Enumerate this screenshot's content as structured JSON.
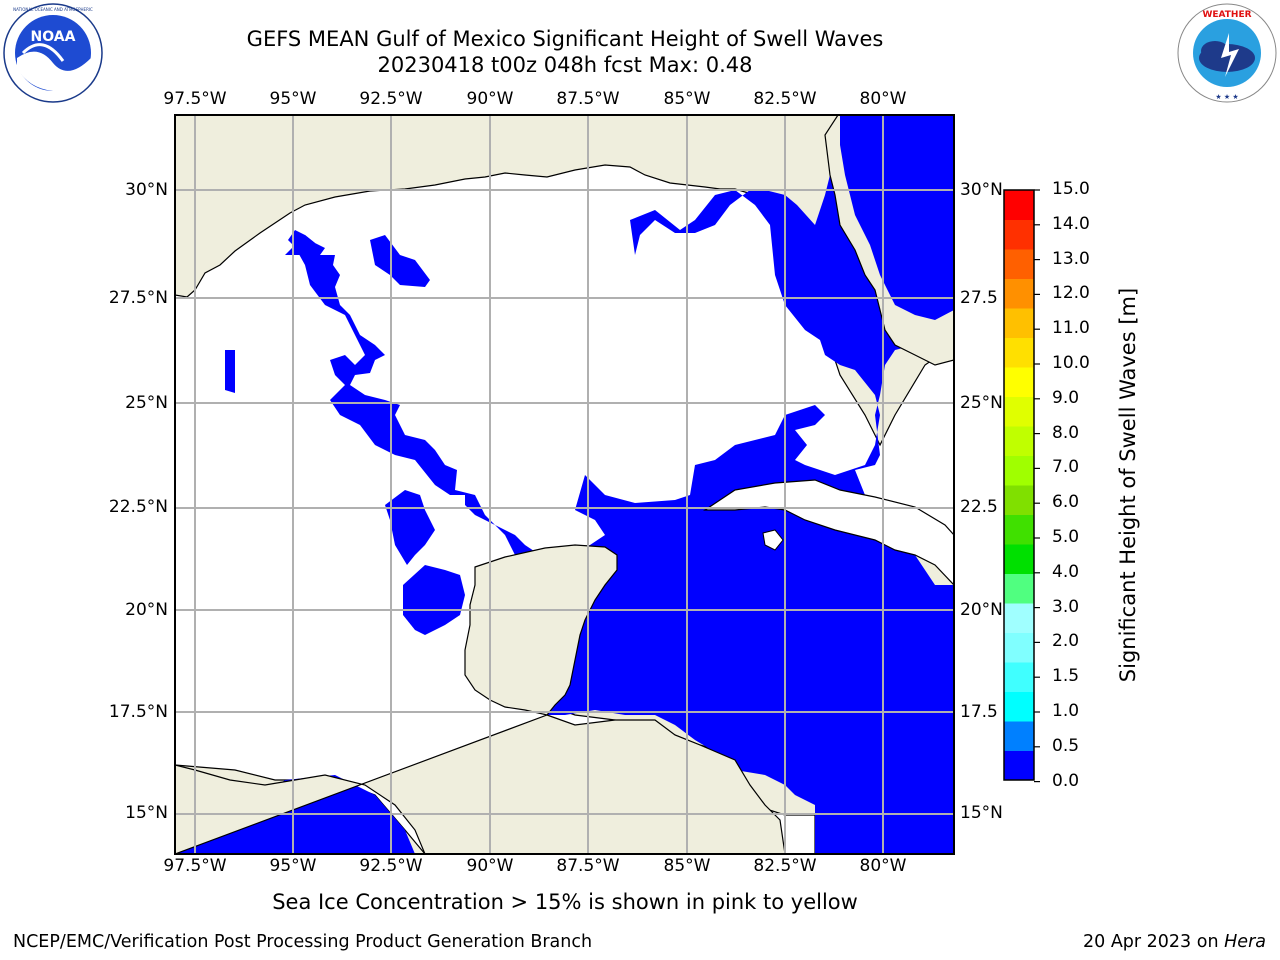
{
  "title": {
    "line1": "GEFS MEAN Gulf of Mexico Significant Height of Swell Waves",
    "line2": "20230418 t00z 048h fcst   Max: 0.48"
  },
  "logos": {
    "left": {
      "name": "NOAA",
      "ring_text": "NATIONAL OCEANIC AND ATMOSPHERIC ADMINISTRATION · U.S. DEPARTMENT OF COMMERCE"
    },
    "right": {
      "name": "NATIONAL WEATHER SERVICE"
    }
  },
  "map": {
    "lon_labels": [
      "97.5°W",
      "95°W",
      "92.5°W",
      "90°W",
      "87.5°W",
      "85°W",
      "82.5°W",
      "80°W"
    ],
    "lat_labels_left": [
      "30°N",
      "27.5°N",
      "25°N",
      "22.5°N",
      "20°N",
      "17.5°N",
      "15°N"
    ],
    "lat_labels_right": [
      "30°N",
      "27.5",
      "25°N",
      "22.5",
      "20°N",
      "17.5",
      "15°N"
    ],
    "colors": {
      "land": "#efeedd",
      "swell_0_to_0_5": "#0000ff",
      "below_threshold": "#ffffff",
      "grid": "#b0b0b0"
    }
  },
  "colorbar": {
    "title": "Significant Height of Swell Waves [m]",
    "tick_labels": [
      "15.0",
      "14.0",
      "13.0",
      "12.0",
      "11.0",
      "10.0",
      "9.0",
      "8.0",
      "7.0",
      "6.0",
      "5.0",
      "4.0",
      "3.0",
      "2.0",
      "1.5",
      "1.0",
      "0.5",
      "0.0"
    ],
    "colors_bottom_to_top": [
      "#0000ff",
      "#0080ff",
      "#00ffff",
      "#40ffff",
      "#80ffff",
      "#a0ffff",
      "#50ff80",
      "#00e000",
      "#40e000",
      "#80e000",
      "#a0ff00",
      "#c0ff00",
      "#e0ff00",
      "#ffff00",
      "#ffe000",
      "#ffc000",
      "#ff9000",
      "#ff6000",
      "#ff3000",
      "#ff0000"
    ]
  },
  "footer": {
    "note": "Sea Ice Concentration > 15% is shown in pink to yellow",
    "credit_left": "NCEP/EMC/Verification Post Processing Product Generation Branch",
    "date": "20 Apr 2023 on",
    "machine": "Hera"
  }
}
